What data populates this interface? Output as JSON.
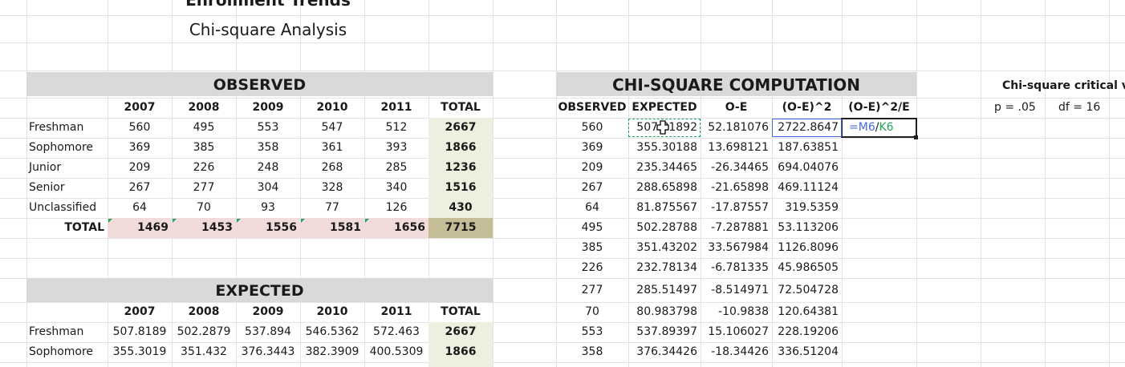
{
  "titles": {
    "main": "Enrollment Trends",
    "sub": "Chi-square Analysis"
  },
  "observed": {
    "title": "OBSERVED",
    "columns": [
      "2007",
      "2008",
      "2009",
      "2010",
      "2011",
      "TOTAL"
    ],
    "rows": [
      {
        "label": "Freshman",
        "values": [
          "560",
          "495",
          "553",
          "547",
          "512"
        ],
        "total": "2667"
      },
      {
        "label": "Sophomore",
        "values": [
          "369",
          "385",
          "358",
          "361",
          "393"
        ],
        "total": "1866"
      },
      {
        "label": "Junior",
        "values": [
          "209",
          "226",
          "248",
          "268",
          "285"
        ],
        "total": "1236"
      },
      {
        "label": "Senior",
        "values": [
          "267",
          "277",
          "304",
          "328",
          "340"
        ],
        "total": "1516"
      },
      {
        "label": "Unclassified",
        "values": [
          "64",
          "70",
          "93",
          "77",
          "126"
        ],
        "total": "430"
      }
    ],
    "totals": {
      "label": "TOTAL",
      "values": [
        "1469",
        "1453",
        "1556",
        "1581",
        "1656"
      ],
      "grand": "7715"
    }
  },
  "expected": {
    "title": "EXPECTED",
    "columns": [
      "2007",
      "2008",
      "2009",
      "2010",
      "2011",
      "TOTAL"
    ],
    "rows": [
      {
        "label": "Freshman",
        "values": [
          "507.8189",
          "502.2879",
          "537.894",
          "546.5362",
          "572.463"
        ],
        "total": "2667"
      },
      {
        "label": "Sophomore",
        "values": [
          "355.3019",
          "351.432",
          "376.3443",
          "382.3909",
          "400.5309"
        ],
        "total": "1866"
      }
    ]
  },
  "chi": {
    "title": "CHI-SQUARE COMPUTATION",
    "columns": [
      "OBSERVED",
      "EXPECTED",
      "O-E",
      "(O-E)^2",
      "(O-E)^2/E"
    ],
    "rows": [
      [
        "560",
        "507.81892",
        "52.181076",
        "2722.8647"
      ],
      [
        "369",
        "355.30188",
        "13.698121",
        "187.63851"
      ],
      [
        "209",
        "235.34465",
        "-26.34465",
        "694.04076"
      ],
      [
        "267",
        "288.65898",
        "-21.65898",
        "469.11124"
      ],
      [
        "64",
        "81.875567",
        "-17.87557",
        "319.5359"
      ],
      [
        "495",
        "502.28788",
        "-7.287881",
        "53.113206"
      ],
      [
        "385",
        "351.43202",
        "33.567984",
        "1126.8096"
      ],
      [
        "226",
        "232.78134",
        "-6.781335",
        "45.986505"
      ],
      [
        "277",
        "285.51497",
        "-8.514971",
        "72.504728"
      ],
      [
        "70",
        "80.983798",
        "-10.9838",
        "120.64381"
      ],
      [
        "553",
        "537.89397",
        "15.106027",
        "228.19206"
      ],
      [
        "358",
        "376.34426",
        "-18.34426",
        "336.51204"
      ]
    ],
    "formula": {
      "prefix": "=",
      "ref1": "M6",
      "sep": "/",
      "ref2": "K6"
    }
  },
  "critical": {
    "title": "Chi-square critical va",
    "p": "p = .05",
    "df": "df = 16"
  },
  "colors": {
    "band": "#d9d9d9",
    "total_col": "#ebf1de",
    "total_row": "#f2dcdb",
    "grand": "#c4bd97",
    "ref_blue": "#4169e1",
    "ref_green": "#21a35a"
  }
}
